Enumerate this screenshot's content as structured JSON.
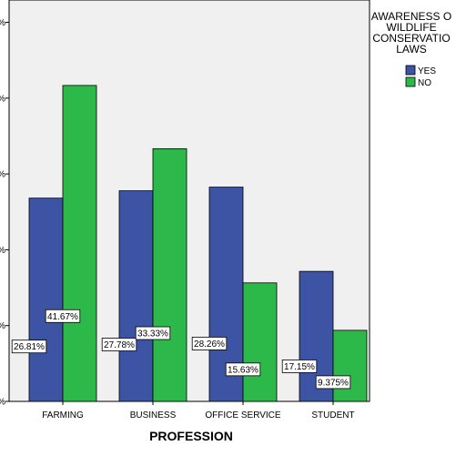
{
  "chart_data": {
    "type": "bar",
    "categories": [
      "FARMING",
      "BUSINESS",
      "OFFICE SERVICE",
      "STUDENT"
    ],
    "series": [
      {
        "name": "YES",
        "color": "#3d53a3",
        "values": [
          26.81,
          27.78,
          28.26,
          17.15
        ],
        "labels": [
          "26.81%",
          "27.78%",
          "28.26%",
          "17.15%"
        ]
      },
      {
        "name": "NO",
        "color": "#2db84a",
        "values": [
          41.67,
          33.33,
          15.63,
          9.375
        ],
        "labels": [
          "41.67%",
          "33.33%",
          "15.63%",
          "9.375%"
        ]
      }
    ],
    "yticks": [
      0,
      10,
      20,
      30,
      40,
      50
    ],
    "ytick_labels": [
      "%",
      "%",
      "%",
      "%",
      "%",
      "%"
    ],
    "ylim": [
      0,
      50
    ],
    "xlabel": "PROFESSION",
    "ylabel": "",
    "legend": {
      "title_lines": [
        "AWARENESS O",
        "WILDLIFE",
        "CONSERVATIO",
        "LAWS"
      ],
      "placement": "top-right"
    },
    "plot_background": "#f0f0f0",
    "grid": false
  }
}
